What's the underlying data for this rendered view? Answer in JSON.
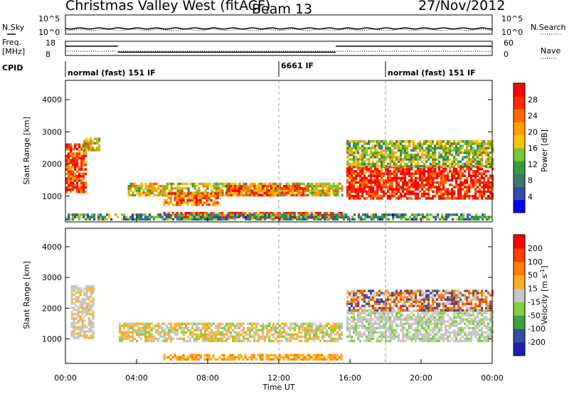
{
  "header": {
    "station": "Christmas Valley West (fitACF)",
    "beam": "Beam 13",
    "date": "27/Nov/2012"
  },
  "status_panels": {
    "nsky_label": "N.Sky",
    "nsearch_label": "N.Search",
    "noise_ticks": [
      "10^5",
      "10^0"
    ],
    "freq_label_1": "Freq.",
    "freq_label_2": "[MHz]",
    "freq_ticks": [
      "18",
      "8"
    ],
    "nave_label": "Nave",
    "nave_ticks": [
      "60",
      "0"
    ],
    "cpid_label": "CPID",
    "cpid_segments": [
      {
        "label": "normal (fast) 151 IF",
        "start_h": 0,
        "end_h": 12
      },
      {
        "label": "6661 IF",
        "start_h": 12,
        "end_h": 18
      },
      {
        "label": "normal (fast) 151 IF",
        "start_h": 18,
        "end_h": 24
      }
    ],
    "freq_steps": [
      {
        "start_h": 0,
        "end_h": 2.95,
        "mhz": 14.5
      },
      {
        "start_h": 2.95,
        "end_h": 15.2,
        "mhz": 10.3
      },
      {
        "start_h": 15.2,
        "end_h": 24,
        "mhz": 14.5
      }
    ]
  },
  "chart_data": [
    {
      "type": "heatmap",
      "name": "power",
      "ylabel": "Slant Range [km]",
      "xlabel": "",
      "xlim_hours": [
        0,
        24
      ],
      "ylim_km": [
        200,
        4600
      ],
      "yticks": [
        1000,
        2000,
        3000,
        4000
      ],
      "colorbar_label": "Power [dB]",
      "colorbar_ticks": [
        "28",
        "24",
        "20",
        "16",
        "12",
        "8",
        "4"
      ],
      "colorbar_range": [
        0,
        30
      ],
      "colors": [
        "#0000ff",
        "#2f4fa8",
        "#3a7a6a",
        "#3a9b3a",
        "#77c736",
        "#ffc400",
        "#ffa000",
        "#ff6a00",
        "#ff2a00",
        "#ff0000"
      ]
    },
    {
      "type": "heatmap",
      "name": "velocity",
      "ylabel": "Slant Range [km]",
      "xlabel": "Time UT",
      "xticks": [
        "00:00",
        "04:00",
        "08:00",
        "12:00",
        "16:00",
        "20:00",
        "00:00"
      ],
      "xlim_hours": [
        0,
        24
      ],
      "ylim_km": [
        200,
        4600
      ],
      "yticks": [
        1000,
        2000,
        3000,
        4000
      ],
      "colorbar_label": "Velocity [m s",
      "colorbar_label_sup": "-1",
      "colorbar_ticks": [
        "200",
        "100",
        "50",
        "15",
        "-15",
        "-50",
        "-100",
        "-200"
      ],
      "colors": [
        "#2020b0",
        "#3050a0",
        "#40a040",
        "#80d040",
        "#c8c8c0",
        "#ffb020",
        "#ff8000",
        "#ff4000",
        "#ff0000"
      ]
    }
  ]
}
